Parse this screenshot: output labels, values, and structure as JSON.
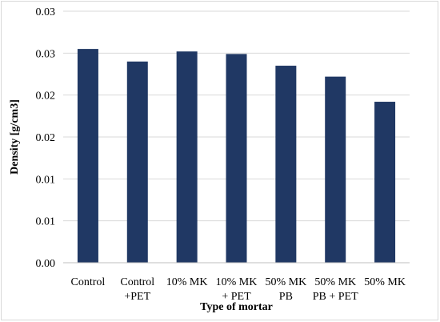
{
  "chart_data": {
    "type": "bar",
    "title": "",
    "xlabel": "Type of mortar",
    "ylabel": "Density [g/cm3]",
    "categories": [
      [
        "Control"
      ],
      [
        "Control",
        "+PET"
      ],
      [
        "10% MK"
      ],
      [
        "10% MK",
        "+ PET"
      ],
      [
        "50% MK",
        "PB"
      ],
      [
        "50% MK",
        "PB + PET"
      ],
      [
        "50% MK"
      ]
    ],
    "values": [
      0.0255,
      0.024,
      0.0252,
      0.0249,
      0.0235,
      0.0222,
      0.0192
    ],
    "ylim": [
      0,
      0.03
    ],
    "yticks": [
      0,
      0.005,
      0.01,
      0.015,
      0.02,
      0.025,
      0.03
    ],
    "ytick_labels": [
      "0.00",
      "0.01",
      "0.01",
      "0.02",
      "0.02",
      "0.03",
      "0.03"
    ],
    "grid": true,
    "legend": "none",
    "colors": {
      "bar": "#203864",
      "grid": "#d9d9d9",
      "axis": "#bfbfbf"
    }
  }
}
